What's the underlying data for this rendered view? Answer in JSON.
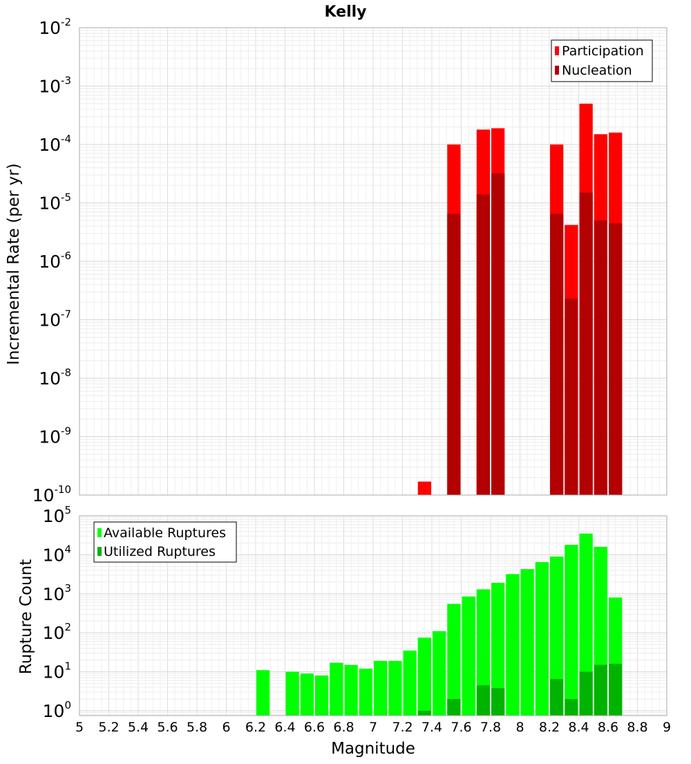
{
  "chart_data": [
    {
      "type": "bar",
      "title": "Kelly",
      "xlabel": "",
      "ylabel": "Incremental Rate (per yr)",
      "yscale": "log",
      "ylim": [
        1e-10,
        0.01
      ],
      "xlim": [
        5,
        9
      ],
      "bar_width": 0.1,
      "y_tick_exponents": [
        -10,
        -9,
        -8,
        -7,
        -6,
        -5,
        -4,
        -3,
        -2
      ],
      "grid": true,
      "legend_placement": "top-right",
      "x": [
        7.35,
        7.55,
        7.75,
        7.85,
        8.25,
        8.35,
        8.45,
        8.55,
        8.65
      ],
      "series": [
        {
          "name": "Participation",
          "color": "#ff0000",
          "values": [
            1.7e-10,
            0.0001,
            0.00018,
            0.00019,
            0.0001,
            4.2e-06,
            0.0005,
            0.00015,
            0.00016
          ]
        },
        {
          "name": "Nucleation",
          "color": "#b30000",
          "values": [
            null,
            6.5e-06,
            1.4e-05,
            3.2e-05,
            6.5e-06,
            2.3e-07,
            1.5e-05,
            5e-06,
            4.5e-06
          ]
        }
      ]
    },
    {
      "type": "bar",
      "title": "",
      "xlabel": "Magnitude",
      "ylabel": "Rupture Count",
      "yscale": "log",
      "ylim": [
        0.75,
        100000
      ],
      "xlim": [
        5,
        9
      ],
      "bar_width": 0.1,
      "y_tick_exponents": [
        0,
        1,
        2,
        3,
        4,
        5
      ],
      "x_ticks": [
        "5",
        "5.2",
        "5.4",
        "5.6",
        "5.8",
        "6",
        "6.2",
        "6.4",
        "6.6",
        "6.8",
        "7",
        "7.2",
        "7.4",
        "7.6",
        "7.8",
        "8",
        "8.2",
        "8.4",
        "8.6",
        "8.8",
        "9"
      ],
      "grid": true,
      "legend_placement": "top-left",
      "x": [
        6.25,
        6.45,
        6.55,
        6.65,
        6.75,
        6.85,
        6.95,
        7.05,
        7.15,
        7.25,
        7.35,
        7.45,
        7.55,
        7.65,
        7.75,
        7.85,
        7.95,
        8.05,
        8.15,
        8.25,
        8.35,
        8.45,
        8.55,
        8.65
      ],
      "series": [
        {
          "name": "Available Ruptures",
          "color": "#00ff00",
          "values": [
            11,
            10,
            9,
            8,
            17,
            15,
            12,
            19,
            19,
            35,
            75,
            110,
            550,
            850,
            1300,
            1900,
            3200,
            4300,
            6500,
            9000,
            18000,
            35000,
            16000,
            800
          ]
        },
        {
          "name": "Utilized Ruptures",
          "color": "#00b300",
          "values": [
            null,
            null,
            null,
            null,
            null,
            null,
            null,
            null,
            null,
            null,
            1,
            null,
            2,
            null,
            4.5,
            3.8,
            null,
            null,
            null,
            6.5,
            2,
            10,
            15,
            16
          ]
        }
      ]
    }
  ]
}
